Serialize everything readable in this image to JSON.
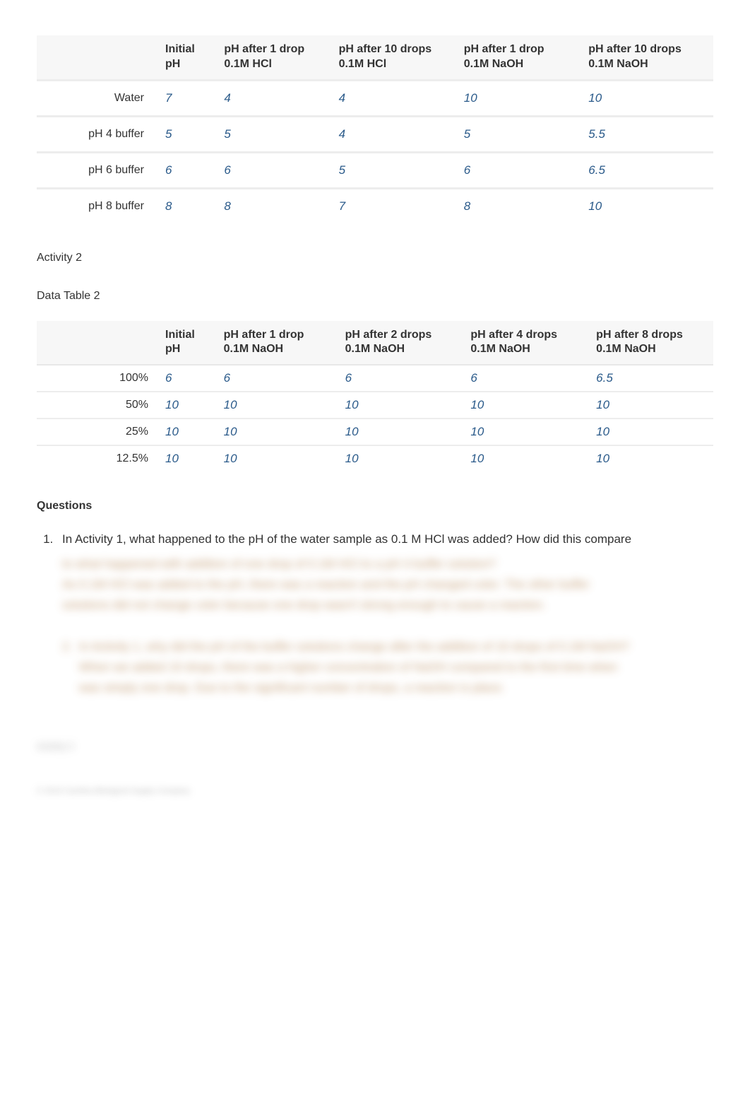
{
  "table1": {
    "columns": [
      "",
      "Initial pH",
      "pH after 1 drop 0.1M HCl",
      "pH after 10 drops 0.1M HCl",
      "pH after 1 drop 0.1M NaOH",
      "pH after 10 drops 0.1M NaOH"
    ],
    "rows": [
      {
        "label": "Water",
        "c1": "7",
        "c2": "4",
        "c3": "4",
        "c4": "10",
        "c5": "10"
      },
      {
        "label": "pH 4 buffer",
        "c1": "5",
        "c2": "5",
        "c3": "4",
        "c4": "5",
        "c5": "5.5"
      },
      {
        "label": "pH 6 buffer",
        "c1": "6",
        "c2": "6",
        "c3": "5",
        "c4": "6",
        "c5": "6.5"
      },
      {
        "label": "pH 8 buffer",
        "c1": "8",
        "c2": "8",
        "c3": "7",
        "c4": "8",
        "c5": "10"
      }
    ]
  },
  "section2": {
    "heading": "Activity 2",
    "subheading": "Data Table 2"
  },
  "table2": {
    "columns": [
      "",
      "Initial pH",
      "pH after 1 drop 0.1M NaOH",
      "pH after 2 drops 0.1M NaOH",
      "pH after 4 drops 0.1M NaOH",
      "pH after 8 drops 0.1M NaOH"
    ],
    "rows": [
      {
        "label": "100%",
        "c1": "6",
        "c2": "6",
        "c3": "6",
        "c4": "6",
        "c5": "6.5"
      },
      {
        "label": "50%",
        "c1": "10",
        "c2": "10",
        "c3": "10",
        "c4": "10",
        "c5": "10"
      },
      {
        "label": "25%",
        "c1": "10",
        "c2": "10",
        "c3": "10",
        "c4": "10",
        "c5": "10"
      },
      {
        "label": "12.5%",
        "c1": "10",
        "c2": "10",
        "c3": "10",
        "c4": "10",
        "c5": "10"
      }
    ]
  },
  "questions": {
    "heading": "Questions",
    "q1_visible": "In Activity 1, what happened to the pH of the water sample as 0.1 M HCl was added? How did this compare",
    "q1_hidden_line1": "to what happened with addition of one drop of 0.1M HCl to a pH 4 buffer solution?",
    "q1_hidden_line2": "As 0.1M HCl was added to the pH, there was a reaction and the pH changed color. The other buffer",
    "q1_hidden_line3": "solutions did not change color because one drop wasn't strong enough to cause a reaction.",
    "q2_hidden_line1": "In Activity 1, why did the pH of the buffer solutions change after the addition of 10 drops of 0.1M NaOH?",
    "q2_hidden_line2": "When we added 10 drops, there was a higher concentration of NaOH compared to the first time when",
    "q2_hidden_line3": "was simply one drop. Due to the significant number of drops, a reaction is place.",
    "activity3_label": "Activity 3",
    "footer": "© 2016 Carolina Biological Supply Company"
  },
  "colors": {
    "data_text": "#2a5a8a",
    "label_text": "#333333",
    "header_bg": "#f7f7f7",
    "row_border": "#ededed",
    "blurred_text": "#b88a5a"
  }
}
